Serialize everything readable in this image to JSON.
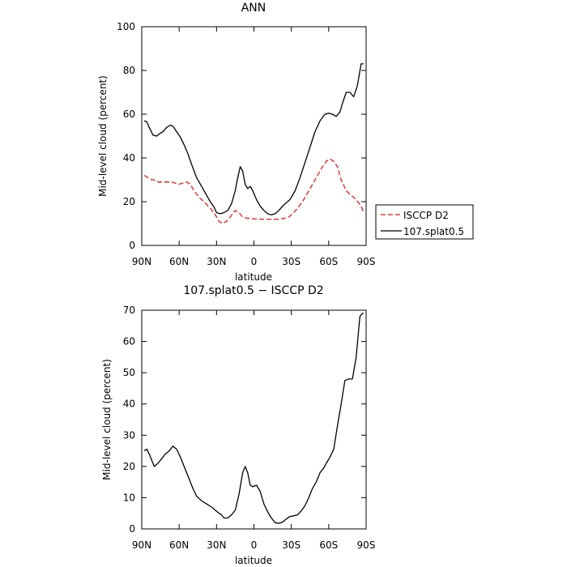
{
  "chart_data": [
    {
      "type": "line",
      "title": "ANN",
      "xlabel": "latitude",
      "ylabel": "Mid-level cloud (percent)",
      "xticks": [
        "90N",
        "60N",
        "30N",
        "0",
        "30S",
        "60S",
        "90S"
      ],
      "xtick_values": [
        90,
        60,
        30,
        0,
        -30,
        -60,
        -90
      ],
      "xlim": [
        90,
        -90
      ],
      "ylim": [
        0,
        100
      ],
      "yticks": [
        0,
        20,
        40,
        60,
        80,
        100
      ],
      "grid": false,
      "legend_position": "right",
      "series": [
        {
          "name": "ISCCP D2",
          "color": "#e31a1c",
          "dash": "dashed",
          "x": [
            88,
            85,
            82,
            80,
            77,
            74,
            70,
            66,
            63,
            60,
            57,
            54,
            51,
            48,
            44,
            40,
            35,
            31,
            28,
            25,
            22,
            19,
            15,
            12,
            9,
            6,
            3,
            0,
            -3,
            -6,
            -10,
            -15,
            -20,
            -25,
            -28,
            -31,
            -35,
            -40,
            -45,
            -50,
            -55,
            -58,
            -61,
            -64,
            -67,
            -70,
            -74,
            -78,
            -82,
            -86,
            -88
          ],
          "y": [
            32,
            31,
            30,
            30,
            29,
            29,
            29,
            29,
            28.5,
            28,
            28.5,
            29,
            28,
            25,
            22,
            20,
            17,
            14,
            11,
            10,
            11,
            13,
            16,
            15,
            13,
            12.5,
            12.3,
            12.2,
            12.1,
            12,
            12,
            12,
            12,
            12.5,
            13,
            14.5,
            17,
            21,
            26,
            31,
            36,
            38.5,
            39.5,
            38.5,
            36,
            30,
            25,
            23,
            21,
            18,
            15
          ]
        },
        {
          "name": "107.splat0.5",
          "color": "#000000",
          "dash": "solid",
          "x": [
            88,
            86,
            84,
            81,
            78,
            76,
            73,
            70,
            67,
            65,
            62,
            59,
            56,
            53,
            50,
            46,
            42,
            38,
            35,
            32,
            30,
            27,
            24,
            21,
            18,
            15,
            13,
            11,
            9,
            7,
            5,
            3,
            1,
            -2,
            -5,
            -8,
            -11,
            -14,
            -17,
            -20,
            -23,
            -26,
            -29,
            -33,
            -37,
            -41,
            -45,
            -49,
            -53,
            -57,
            -60,
            -63,
            -66,
            -69,
            -71,
            -74,
            -77,
            -80,
            -83,
            -86,
            -88
          ],
          "y": [
            57,
            56.5,
            54,
            50.5,
            50,
            51,
            52,
            54,
            55,
            54.5,
            52,
            49.5,
            46,
            42,
            37,
            31,
            27,
            23,
            20,
            17.5,
            15,
            14.5,
            15,
            16,
            19,
            25,
            31,
            36,
            34,
            28,
            26,
            27,
            25,
            21,
            18,
            16,
            14.5,
            14,
            14.5,
            16,
            18,
            19.5,
            21,
            25,
            31,
            38,
            45,
            52,
            57,
            60,
            60.5,
            60,
            59,
            61,
            65,
            70,
            70,
            68,
            73,
            83,
            83
          ]
        }
      ]
    },
    {
      "type": "line",
      "title": "107.splat0.5 − ISCCP D2",
      "xlabel": "latitude",
      "ylabel": "Mid-level cloud (percent)",
      "xticks": [
        "90N",
        "60N",
        "30N",
        "0",
        "30S",
        "60S",
        "90S"
      ],
      "xtick_values": [
        90,
        60,
        30,
        0,
        -30,
        -60,
        -90
      ],
      "xlim": [
        90,
        -90
      ],
      "ylim": [
        0,
        70
      ],
      "yticks": [
        0,
        10,
        20,
        30,
        40,
        50,
        60,
        70
      ],
      "grid": false,
      "series": [
        {
          "color": "#000000",
          "dash": "solid",
          "x": [
            88,
            86,
            84,
            82,
            80,
            77,
            74,
            71,
            68,
            65,
            62,
            59,
            56,
            52,
            49,
            46,
            42,
            38,
            34,
            31,
            28,
            26,
            24,
            21,
            18,
            15,
            12,
            9,
            7,
            5,
            3,
            1,
            -2,
            -5,
            -8,
            -11,
            -14,
            -17,
            -20,
            -23,
            -26,
            -29,
            -32,
            -35,
            -38,
            -41,
            -44,
            -47,
            -50,
            -53,
            -56,
            -58,
            -61,
            -64,
            -67,
            -70,
            -73,
            -76,
            -79,
            -82,
            -85,
            -87,
            -88
          ],
          "y": [
            25,
            25.5,
            24,
            22,
            20,
            21,
            22.5,
            24,
            25,
            26.5,
            25.5,
            23,
            20,
            16,
            13,
            10.5,
            9,
            8,
            7,
            6,
            5,
            4.5,
            3.5,
            3.5,
            4.5,
            6,
            11,
            18,
            20,
            18,
            14,
            13.5,
            14,
            12,
            8,
            5.5,
            3.5,
            2,
            1.8,
            2.2,
            3.2,
            4,
            4.2,
            4.5,
            5.8,
            7.5,
            10,
            13,
            15,
            18,
            19.5,
            21,
            23,
            25.5,
            33,
            40,
            47.5,
            48,
            48,
            55,
            68,
            69,
            69
          ]
        }
      ]
    }
  ]
}
